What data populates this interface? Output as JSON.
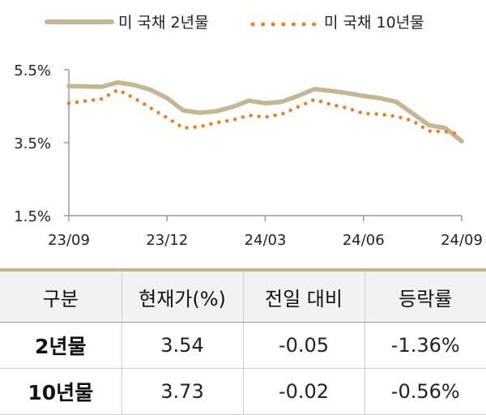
{
  "chart_data": {
    "type": "line",
    "ylim": [
      1.5,
      5.5
    ],
    "y_ticks": [
      "5.5%",
      "3.5%",
      "1.5%"
    ],
    "y_tick_values": [
      5.5,
      3.5,
      1.5
    ],
    "x_ticks": [
      "23/09",
      "23/12",
      "24/03",
      "24/06",
      "24/09"
    ],
    "x_tick_values": [
      "2023-09",
      "2023-12",
      "2024-03",
      "2024-06",
      "2024-09"
    ],
    "grid": false,
    "legend": "top",
    "series": [
      {
        "name": "미 국채 2년물",
        "style": "solid",
        "color": "#c4b594",
        "x": [
          "2023-09",
          "2023-10",
          "2023-10",
          "2023-11",
          "2023-11",
          "2023-12",
          "2023-12",
          "2024-01",
          "2024-01",
          "2024-02",
          "2024-02",
          "2024-03",
          "2024-03",
          "2024-04",
          "2024-04",
          "2024-05",
          "2024-05",
          "2024-06",
          "2024-06",
          "2024-07",
          "2024-07",
          "2024-08",
          "2024-08",
          "2024-09"
        ],
        "values": [
          5.05,
          5.03,
          5.15,
          5.08,
          4.95,
          4.72,
          4.38,
          4.32,
          4.36,
          4.48,
          4.65,
          4.58,
          4.62,
          4.78,
          4.97,
          4.92,
          4.86,
          4.78,
          4.72,
          4.62,
          4.3,
          3.98,
          3.9,
          3.54
        ]
      },
      {
        "name": "미 국채 10년물",
        "style": "dotted",
        "color": "#e8822a",
        "x": [
          "2023-09",
          "2023-10",
          "2023-10",
          "2023-11",
          "2023-11",
          "2023-12",
          "2023-12",
          "2024-01",
          "2024-01",
          "2024-02",
          "2024-02",
          "2024-03",
          "2024-03",
          "2024-04",
          "2024-04",
          "2024-05",
          "2024-05",
          "2024-06",
          "2024-06",
          "2024-07",
          "2024-07",
          "2024-08",
          "2024-08",
          "2024-09"
        ],
        "values": [
          4.58,
          4.7,
          4.95,
          4.72,
          4.45,
          4.18,
          3.9,
          3.94,
          4.05,
          4.12,
          4.25,
          4.2,
          4.28,
          4.48,
          4.68,
          4.55,
          4.45,
          4.3,
          4.28,
          4.22,
          4.1,
          3.82,
          3.8,
          3.73
        ]
      }
    ]
  },
  "table": {
    "headers": [
      "구분",
      "현재가(%)",
      "전일 대비",
      "등락률"
    ],
    "rows": [
      [
        "2년물",
        "3.54",
        "-0.05",
        "-1.36%"
      ],
      [
        "10년물",
        "3.73",
        "-0.02",
        "-0.56%"
      ]
    ]
  }
}
